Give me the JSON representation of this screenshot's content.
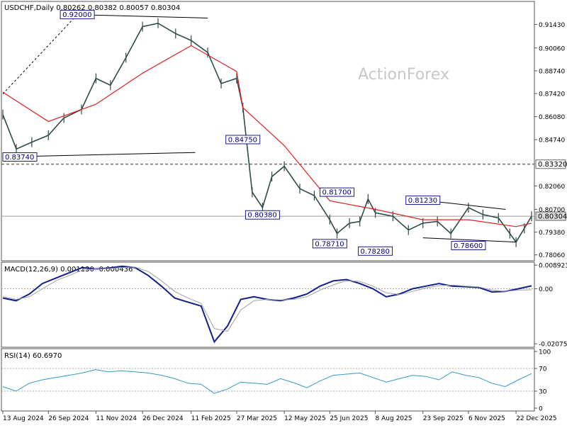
{
  "header": {
    "symbol_line": "USDCHF,Daily  0.80262 0.80382 0.80057 0.80304"
  },
  "watermark": "ActionForex",
  "colors": {
    "price_bars": "#2e4a4a",
    "moving_average": "#e02020",
    "macd_line": "#102090",
    "macd_signal": "#a0a0a0",
    "rsi_line": "#3399cc",
    "annotation_box_border": "#1a1a8c",
    "annotation_text": "#000080",
    "trendline": "#000000",
    "grid_ref": "#9a9a9a"
  },
  "chart_data": [
    {
      "type": "line",
      "title": "USDCHF,Daily",
      "subtitle": "0.80262 0.80382 0.80057 0.80304",
      "ylim": [
        0.778,
        0.926
      ],
      "y_ticks": [
        "0.91430",
        "0.90060",
        "0.88740",
        "0.87420",
        "0.86080",
        "0.84740",
        "0.83320",
        "0.82060",
        "0.80700",
        "0.80304",
        "0.79380",
        "0.78060"
      ],
      "x_ticks": [
        "13 Aug 2024",
        "26 Sep 2024",
        "11 Nov 2024",
        "26 Dec 2024",
        "11 Feb 2025",
        "27 Mar 2025",
        "12 May 2025",
        "25 Jun 2025",
        "8 Aug 2025",
        "23 Sep 2025",
        "6 Nov 2025",
        "22 Dec 2025"
      ],
      "x_range": [
        "13 Aug 2024",
        "6 Jan 2026"
      ],
      "series": [
        {
          "kind": "ohlc_close_trace",
          "x": [
            "13 Aug 2024",
            "26 Aug 2024",
            "10 Sep 2024",
            "26 Sep 2024",
            "11 Oct 2024",
            "28 Oct 2024",
            "11 Nov 2024",
            "25 Nov 2024",
            "10 Dec 2024",
            "26 Dec 2024",
            "10 Jan 2025",
            "27 Jan 2025",
            "11 Feb 2025",
            "27 Feb 2025",
            "12 Mar 2025",
            "27 Mar 2025",
            "2 Apr 2025",
            "11 Apr 2025",
            "21 Apr 2025",
            "30 Apr 2025",
            "12 May 2025",
            "27 May 2025",
            "10 Jun 2025",
            "25 Jun 2025",
            "2 Jul 2025",
            "14 Jul 2025",
            "24 Jul 2025",
            "1 Aug 2025",
            "8 Aug 2025",
            "25 Aug 2025",
            "9 Sep 2025",
            "23 Sep 2025",
            "7 Oct 2025",
            "20 Oct 2025",
            "6 Nov 2025",
            "20 Nov 2025",
            "5 Dec 2025",
            "16 Dec 2025",
            "22 Dec 2025",
            "30 Dec 2025",
            "6 Jan 2026"
          ],
          "values": [
            0.862,
            0.842,
            0.846,
            0.85,
            0.86,
            0.865,
            0.883,
            0.879,
            0.895,
            0.913,
            0.915,
            0.909,
            0.905,
            0.898,
            0.88,
            0.883,
            0.866,
            0.817,
            0.808,
            0.826,
            0.832,
            0.819,
            0.815,
            0.801,
            0.793,
            0.799,
            0.8,
            0.813,
            0.805,
            0.803,
            0.795,
            0.799,
            0.8,
            0.793,
            0.808,
            0.804,
            0.802,
            0.793,
            0.788,
            0.796,
            0.803
          ]
        },
        {
          "kind": "moving_average",
          "x": [
            "13 Aug 2024",
            "26 Sep 2024",
            "11 Nov 2024",
            "26 Dec 2024",
            "11 Feb 2025",
            "27 Mar 2025",
            "2 Apr 2025",
            "12 May 2025",
            "25 Jun 2025",
            "8 Aug 2025",
            "23 Sep 2025",
            "6 Nov 2025",
            "22 Dec 2025",
            "6 Jan 2026"
          ],
          "values": [
            0.875,
            0.858,
            0.868,
            0.886,
            0.902,
            0.887,
            0.866,
            0.844,
            0.812,
            0.807,
            0.801,
            0.801,
            0.797,
            0.799
          ]
        }
      ],
      "annotations": [
        {
          "label": "0.92000",
          "x": "24 Oct 2024",
          "y": 0.92
        },
        {
          "label": "0.83740",
          "x": "13 Aug 2024",
          "y": 0.8374
        },
        {
          "label": "0.84750",
          "x": "2 Apr 2025",
          "y": 0.8475
        },
        {
          "label": "0.80380",
          "x": "21 Apr 2025",
          "y": 0.8038
        },
        {
          "label": "0.81700",
          "x": "2 Jul 2025",
          "y": 0.817
        },
        {
          "label": "0.78710",
          "x": "25 Jun 2025",
          "y": 0.7871
        },
        {
          "label": "0.78280",
          "x": "8 Aug 2025",
          "y": 0.7828
        },
        {
          "label": "0.81230",
          "x": "23 Sep 2025",
          "y": 0.8123
        },
        {
          "label": "0.78600",
          "x": "6 Nov 2025",
          "y": 0.786
        },
        {
          "label": "0.83320",
          "x": "6 Jan 2026",
          "y": 0.8332
        },
        {
          "label": "0.80304",
          "x": "6 Jan 2026",
          "y": 0.80304
        }
      ],
      "reference_lines": [
        {
          "kind": "horizontal-dashed",
          "y": 0.8332
        },
        {
          "kind": "horizontal-solid",
          "y": 0.80304
        }
      ]
    },
    {
      "type": "line",
      "title": "MACD(12,26,9) 0.001130 -0.000436",
      "ylim": [
        -0.0215,
        0.0095
      ],
      "y_ticks": [
        "0.008923",
        "0.00",
        "-0.020759"
      ],
      "series": [
        {
          "name": "MACD",
          "values": [
            -0.0035,
            -0.0045,
            -0.002,
            0.002,
            0.004,
            0.006,
            0.008,
            0.0075,
            0.0078,
            0.0085,
            0.008,
            0.005,
            0.001,
            -0.0035,
            -0.005,
            -0.0065,
            -0.02,
            -0.014,
            -0.004,
            -0.003,
            -0.004,
            -0.0045,
            -0.0035,
            -0.002,
            0.001,
            0.003,
            0.0035,
            0.002,
            0.0,
            -0.003,
            -0.002,
            0.0,
            0.001,
            0.002,
            0.001,
            0.0008,
            0.0005,
            -0.0012,
            -0.001,
            0.0,
            0.0011
          ]
        },
        {
          "name": "Signal",
          "values": [
            -0.003,
            -0.004,
            -0.003,
            0.0,
            0.003,
            0.005,
            0.007,
            0.0075,
            0.0076,
            0.008,
            0.0082,
            0.0065,
            0.003,
            -0.001,
            -0.0035,
            -0.0055,
            -0.015,
            -0.016,
            -0.008,
            -0.0045,
            -0.004,
            -0.0042,
            -0.004,
            -0.003,
            -0.0005,
            0.0015,
            0.003,
            0.0028,
            0.001,
            -0.0015,
            -0.0022,
            -0.001,
            0.0003,
            0.0012,
            0.0014,
            0.001,
            0.0007,
            -0.0005,
            -0.001,
            -0.0005,
            -0.0004
          ]
        }
      ]
    },
    {
      "type": "line",
      "title": "RSI(14) 60.6970",
      "ylim": [
        0,
        100
      ],
      "y_ticks": [
        "100",
        "70",
        "30",
        "0"
      ],
      "series": [
        {
          "name": "RSI",
          "values": [
            38,
            30,
            44,
            50,
            54,
            58,
            62,
            68,
            64,
            66,
            64,
            62,
            58,
            52,
            44,
            42,
            26,
            34,
            46,
            44,
            42,
            52,
            45,
            36,
            48,
            58,
            60,
            62,
            54,
            46,
            52,
            58,
            56,
            50,
            64,
            58,
            54,
            44,
            38,
            50,
            61
          ]
        }
      ]
    }
  ]
}
